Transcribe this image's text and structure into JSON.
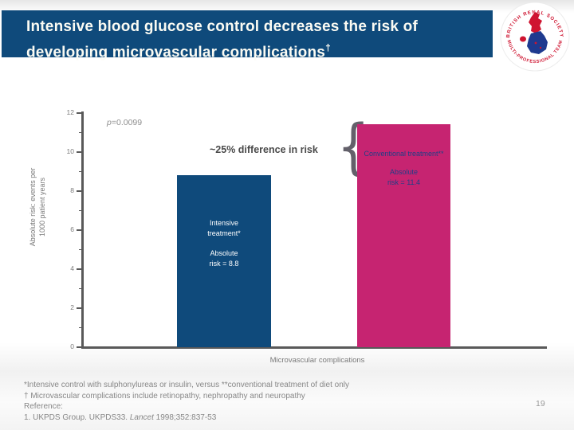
{
  "slide": {
    "title_line1": "Intensive blood glucose control decreases the risk of",
    "title_line2": "developing microvascular complications",
    "title_dagger": "†",
    "page_number": "19"
  },
  "logo": {
    "arc_top": "BRITISH RENAL SOCIETY",
    "arc_bottom": "MULTI-PROFESSIONAL TEAM"
  },
  "chart_data": {
    "type": "bar",
    "categories": [
      "Intensive treatment*",
      "Conventional treatment**"
    ],
    "values": [
      8.8,
      11.4
    ],
    "bar_labels": [
      "Absolute risk = 8.8",
      "Absolute risk = 11.4"
    ],
    "title": "",
    "xlabel": "Microvascular complications",
    "ylabel": "Absolute risk: events per 1000 patient years",
    "ylim": [
      0,
      12
    ],
    "yticks_values": [
      0,
      2,
      4,
      6,
      8,
      10,
      12
    ],
    "grid": false,
    "legend": "none",
    "annotations": [
      "p=0.0099",
      "~25% difference in risk"
    ],
    "bar_colors": [
      "#0f4a7b",
      "#c62471"
    ]
  },
  "chart": {
    "ylabel_line1": "Absolute risk: events per",
    "ylabel_line2": "1000 patient years",
    "yticks": [
      "12",
      "10",
      "8",
      "6",
      "4",
      "2",
      "0"
    ],
    "p_italic": "p",
    "p_rest": "=0.0099",
    "difference_label": "~25% difference in risk",
    "brace_glyph": "{",
    "xlabel": "Microvascular complications",
    "bars": [
      {
        "line1": "Intensive",
        "line2": "treatment*",
        "risk1": "Absolute",
        "risk2": "risk = 8.8"
      },
      {
        "label": "Conventional treatment**",
        "risk1": "Absolute",
        "risk2": "risk = 11.4"
      }
    ]
  },
  "footer": {
    "line1": "*Intensive control with sulphonylureas or insulin, versus **conventional treatment of diet only",
    "line2": "† Microvascular complications include retinopathy, nephropathy and neuropathy",
    "line3": "Reference:",
    "line4_prefix": "1. UKPDS Group. UKPDS33. ",
    "line4_italic": "Lancet",
    "line4_suffix": " 1998;352:837-53"
  },
  "colors": {
    "banner_blue": "#0f4a7b",
    "bar_blue": "#0f4a7b",
    "bar_magenta": "#c62471",
    "bar_text_navy": "#1f3f86",
    "axis_gray": "#595959",
    "logo_red": "#cf1430",
    "logo_blue": "#1e3a8f"
  }
}
